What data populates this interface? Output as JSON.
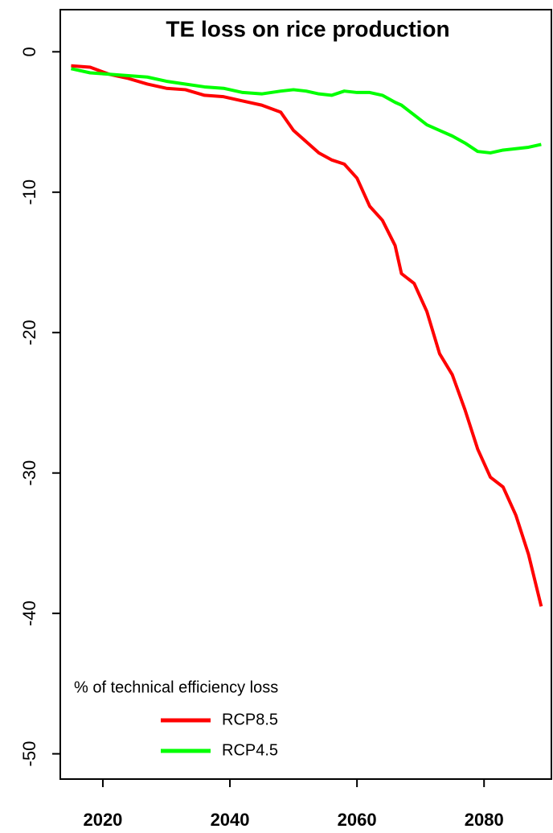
{
  "chart_data": {
    "type": "line",
    "title": "TE loss on rice production",
    "x": [
      2015,
      2018,
      2021,
      2024,
      2027,
      2030,
      2033,
      2036,
      2039,
      2042,
      2045,
      2048,
      2050,
      2052,
      2054,
      2056,
      2058,
      2060,
      2062,
      2064,
      2066,
      2067,
      2069,
      2071,
      2073,
      2075,
      2077,
      2079,
      2081,
      2083,
      2085,
      2087,
      2089
    ],
    "series": [
      {
        "name": "RCP8.5",
        "color": "#ff0000",
        "values": [
          -1,
          -1.1,
          -1.6,
          -1.9,
          -2.3,
          -2.6,
          -2.7,
          -3.1,
          -3.2,
          -3.5,
          -3.8,
          -4.3,
          -5.6,
          -6.4,
          -7.2,
          -7.7,
          -8.0,
          -9.0,
          -11.0,
          -12.0,
          -13.8,
          -15.8,
          -16.5,
          -18.5,
          -21.5,
          -23.0,
          -25.5,
          -28.3,
          -30.3,
          -31.0,
          -33.0,
          -35.8,
          -39.5
        ]
      },
      {
        "name": "RCP4.5",
        "color": "#00ff00",
        "values": [
          -1.2,
          -1.5,
          -1.6,
          -1.7,
          -1.8,
          -2.1,
          -2.3,
          -2.5,
          -2.6,
          -2.9,
          -3.0,
          -2.8,
          -2.7,
          -2.8,
          -3.0,
          -3.1,
          -2.8,
          -2.9,
          -2.9,
          -3.1,
          -3.6,
          -3.8,
          -4.5,
          -5.2,
          -5.6,
          -6.0,
          -6.5,
          -7.1,
          -7.2,
          -7.0,
          -6.9,
          -6.8,
          -6.6
        ]
      }
    ],
    "legend_title": "% of technical efficiency loss",
    "legend_position": "bottom-left",
    "xlim": [
      2013.3,
      2090.6
    ],
    "xticks": [
      2020,
      2040,
      2060,
      2080
    ],
    "ylim": [
      -51.8,
      3.0
    ],
    "yticks": [
      0,
      -10,
      -20,
      -30,
      -40,
      -50
    ],
    "grid": false
  }
}
